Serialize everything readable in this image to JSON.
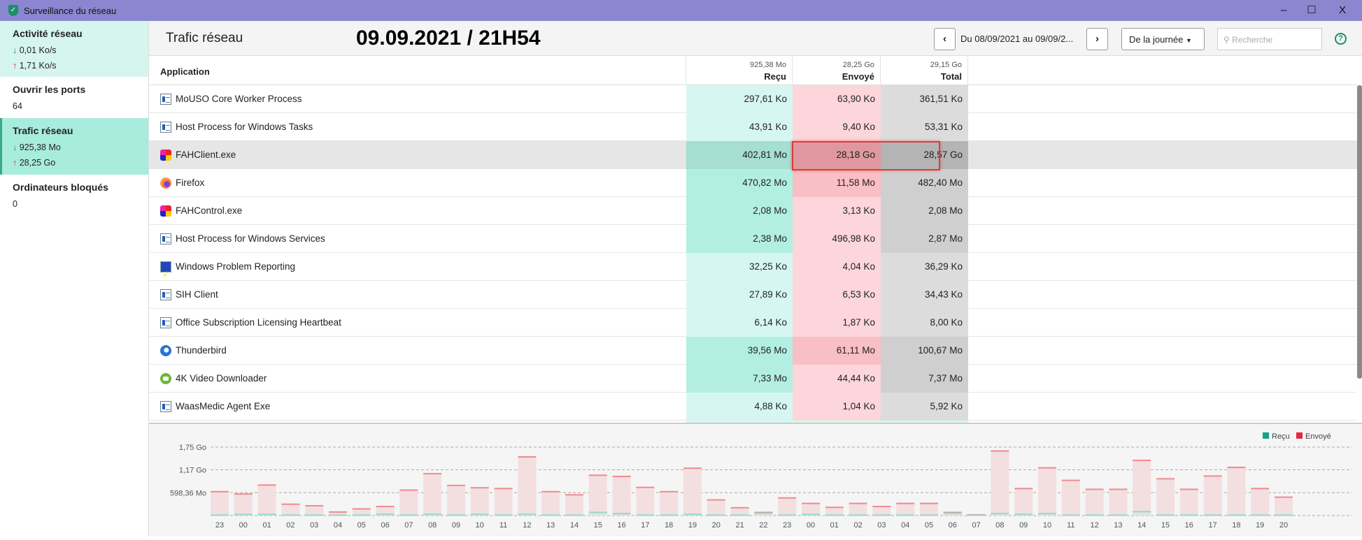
{
  "window": {
    "title": "Surveillance du réseau",
    "minimize": "–",
    "maximize": "☐",
    "close": "X"
  },
  "sidebar": {
    "activity": {
      "label": "Activité réseau",
      "down": "0,01 Ko/s",
      "up": "1,71 Ko/s"
    },
    "ports": {
      "label": "Ouvrir les ports",
      "value": "64"
    },
    "traffic": {
      "label": "Trafic réseau",
      "down": "925,38 Mo",
      "up": "28,25 Go"
    },
    "blocked": {
      "label": "Ordinateurs bloqués",
      "value": "0"
    }
  },
  "header": {
    "title": "Trafic réseau",
    "datetime": "09.09.2021 / 21H54",
    "range": "Du 08/09/2021 au 09/09/2...",
    "period": "De la journée",
    "search_placeholder": "Recherche",
    "help": "?"
  },
  "table": {
    "columns": {
      "app": "Application",
      "received": "Reçu",
      "sent": "Envoyé",
      "total": "Total"
    },
    "totals": {
      "received": "925,38 Mo",
      "sent": "28,25 Go",
      "total": "29,15 Go"
    },
    "rows": [
      {
        "icon": "win",
        "name": "MoUSO Core Worker Process",
        "received": "297,61 Ko",
        "sent": "63,90 Ko",
        "total": "361,51 Ko"
      },
      {
        "icon": "win",
        "name": "Host Process for Windows Tasks",
        "received": "43,91 Ko",
        "sent": "9,40 Ko",
        "total": "53,31 Ko"
      },
      {
        "icon": "fah",
        "name": "FAHClient.exe",
        "received": "402,81 Mo",
        "sent": "28,18 Go",
        "total": "28,57 Go",
        "selected": true
      },
      {
        "icon": "firefox",
        "name": "Firefox",
        "received": "470,82 Mo",
        "sent": "11,58 Mo",
        "total": "482,40 Mo"
      },
      {
        "icon": "fah",
        "name": "FAHControl.exe",
        "received": "2,08 Mo",
        "sent": "3,13 Ko",
        "total": "2,08 Mo"
      },
      {
        "icon": "win",
        "name": "Host Process for Windows Services",
        "received": "2,38 Mo",
        "sent": "496,98 Ko",
        "total": "2,87 Mo"
      },
      {
        "icon": "wpr",
        "name": "Windows Problem Reporting",
        "received": "32,25 Ko",
        "sent": "4,04 Ko",
        "total": "36,29 Ko"
      },
      {
        "icon": "win",
        "name": "SIH Client",
        "received": "27,89 Ko",
        "sent": "6,53 Ko",
        "total": "34,43 Ko"
      },
      {
        "icon": "win",
        "name": "Office Subscription Licensing Heartbeat",
        "received": "6,14 Ko",
        "sent": "1,87 Ko",
        "total": "8,00 Ko"
      },
      {
        "icon": "tb",
        "name": "Thunderbird",
        "received": "39,56 Mo",
        "sent": "61,11 Mo",
        "total": "100,67 Mo"
      },
      {
        "icon": "k4",
        "name": "4K Video Downloader",
        "received": "7,33 Mo",
        "sent": "44,44 Ko",
        "total": "7,37 Mo"
      },
      {
        "icon": "win",
        "name": "WaasMedic Agent Exe",
        "received": "4,88 Ko",
        "sent": "1,04 Ko",
        "total": "5,92 Ko"
      }
    ]
  },
  "colors": {
    "titlebar": "#8a87d0",
    "received": "#12a383",
    "sent": "#e8283a"
  },
  "chart_data": {
    "type": "bar",
    "unit": "Go",
    "legend": [
      "Reçu",
      "Envoyé"
    ],
    "legend_position": "top-right",
    "yticks": [
      {
        "value": 0.584,
        "label": "598,36 Mo"
      },
      {
        "value": 1.17,
        "label": "1,17 Go"
      },
      {
        "value": 1.75,
        "label": "1,75 Go"
      }
    ],
    "ylim": [
      0,
      1.75
    ],
    "categories": [
      "23",
      "00",
      "01",
      "02",
      "03",
      "04",
      "05",
      "06",
      "07",
      "08",
      "09",
      "10",
      "11",
      "12",
      "13",
      "14",
      "15",
      "16",
      "17",
      "18",
      "19",
      "20",
      "21",
      "22",
      "23",
      "00",
      "01",
      "02",
      "03",
      "04",
      "05",
      "06",
      "07",
      "08",
      "09",
      "10",
      "11",
      "12",
      "13",
      "14",
      "15",
      "16",
      "17",
      "18",
      "19",
      "20"
    ],
    "series": [
      {
        "name": "Reçu",
        "values": [
          0.01,
          0.03,
          0.03,
          0.01,
          0.01,
          0.01,
          0.01,
          0.03,
          0.01,
          0.03,
          0.01,
          0.03,
          0.01,
          0.03,
          0.01,
          0.01,
          0.08,
          0.05,
          0.01,
          0.01,
          0.03,
          0.01,
          0.01,
          0.06,
          0.01,
          0.03,
          0.01,
          0.01,
          0.01,
          0.01,
          0.01,
          0.06,
          0.01,
          0.05,
          0.03,
          0.05,
          0.01,
          0.01,
          0.01,
          0.1,
          0.01,
          0.01,
          0.01,
          0.01,
          0.01,
          0.01
        ]
      },
      {
        "name": "Envoyé",
        "values": [
          0.6,
          0.52,
          0.75,
          0.28,
          0.24,
          0.08,
          0.16,
          0.2,
          0.64,
          1.04,
          0.76,
          0.68,
          0.68,
          1.47,
          0.6,
          0.52,
          0.95,
          0.95,
          0.71,
          0.6,
          1.18,
          0.39,
          0.19,
          0.02,
          0.44,
          0.28,
          0.2,
          0.3,
          0.22,
          0.3,
          0.3,
          0.02,
          0.01,
          1.6,
          0.66,
          1.17,
          0.89,
          0.66,
          0.66,
          1.31,
          0.93,
          0.66,
          1.0,
          1.22,
          0.68,
          0.46
        ]
      }
    ]
  }
}
